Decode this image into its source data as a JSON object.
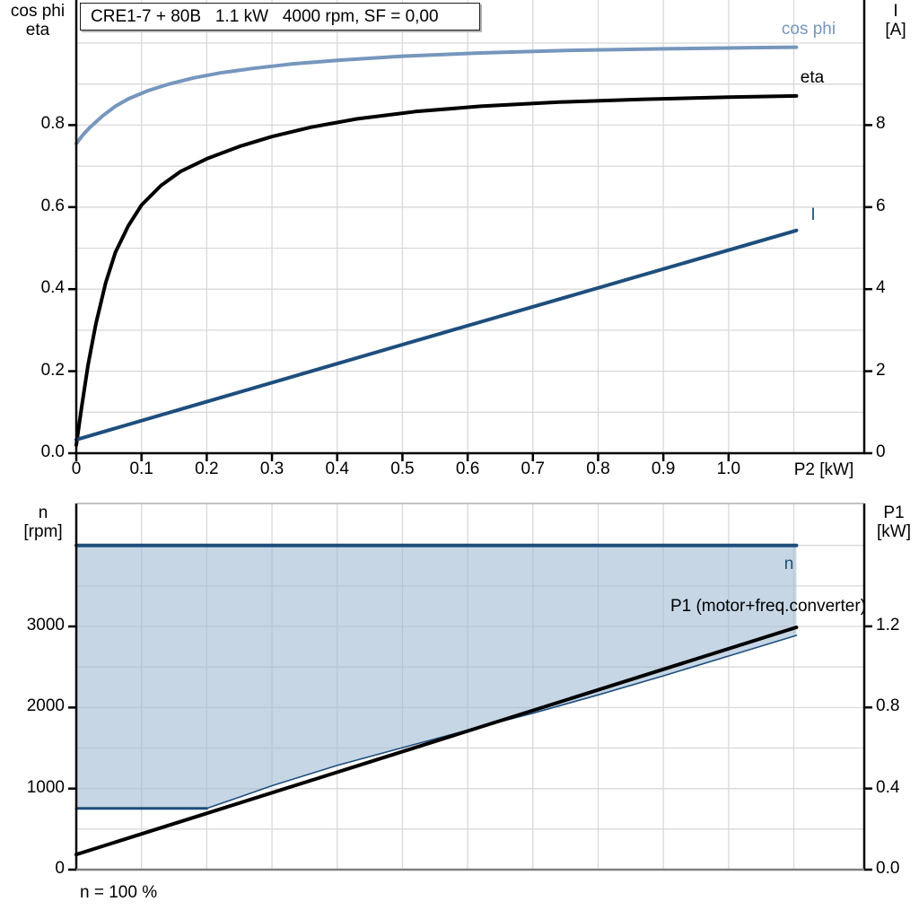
{
  "title": "CRE1-7 + 80B   1.1 kW   4000 rpm, SF = 0,00",
  "footnote": "n = 100 %",
  "colors": {
    "light_blue": "#7696bd",
    "dark_blue": "#1e4e7d",
    "black": "#000000",
    "grid": "#d9d9d9",
    "band_fill": "rgba(157,184,211,0.58)",
    "axis": "#000000",
    "axis_gray": "#808080"
  },
  "chart_data": [
    {
      "type": "line",
      "title": "CRE1-7 + 80B   1.1 kW   4000 rpm, SF = 0,00",
      "x_axis": {
        "label": "P2 [kW]",
        "range": [
          0,
          1.208
        ],
        "grid_step": 0.1,
        "ticks": [
          {
            "v": 0,
            "label": "0"
          },
          {
            "v": 0.1,
            "label": "0.1"
          },
          {
            "v": 0.2,
            "label": "0.2"
          },
          {
            "v": 0.3,
            "label": "0.3"
          },
          {
            "v": 0.4,
            "label": "0.4"
          },
          {
            "v": 0.5,
            "label": "0.5"
          },
          {
            "v": 0.6,
            "label": "0.6"
          },
          {
            "v": 0.7,
            "label": "0.7"
          },
          {
            "v": 0.8,
            "label": "0.8"
          },
          {
            "v": 0.9,
            "label": "0.9"
          },
          {
            "v": 1.0,
            "label": "1.0"
          }
        ]
      },
      "left_axis": {
        "header": [
          "cos phi",
          "eta"
        ],
        "range": [
          0,
          1.105
        ],
        "grid_step": 0.1,
        "ticks": [
          {
            "v": 0,
            "label": "0.0"
          },
          {
            "v": 0.2,
            "label": "0.2"
          },
          {
            "v": 0.4,
            "label": "0.4"
          },
          {
            "v": 0.6,
            "label": "0.6"
          },
          {
            "v": 0.8,
            "label": "0.8"
          }
        ]
      },
      "right_axis": {
        "header": [
          "I",
          "[A]"
        ],
        "range": [
          0,
          11.05
        ],
        "grid_step": 1,
        "ticks": [
          {
            "v": 0,
            "label": "0"
          },
          {
            "v": 2,
            "label": "2"
          },
          {
            "v": 4,
            "label": "4"
          },
          {
            "v": 6,
            "label": "6"
          },
          {
            "v": 8,
            "label": "8"
          }
        ]
      },
      "series": [
        {
          "name": "cos phi",
          "label": "cos phi",
          "axis": "left",
          "color": "light_blue",
          "width": 4,
          "points": [
            [
              0,
              0.755
            ],
            [
              0.01,
              0.776
            ],
            [
              0.02,
              0.793
            ],
            [
              0.04,
              0.822
            ],
            [
              0.06,
              0.846
            ],
            [
              0.08,
              0.864
            ],
            [
              0.11,
              0.884
            ],
            [
              0.14,
              0.899
            ],
            [
              0.18,
              0.915
            ],
            [
              0.22,
              0.927
            ],
            [
              0.27,
              0.938
            ],
            [
              0.33,
              0.949
            ],
            [
              0.4,
              0.958
            ],
            [
              0.5,
              0.968
            ],
            [
              0.62,
              0.976
            ],
            [
              0.75,
              0.982
            ],
            [
              0.9,
              0.986
            ],
            [
              1.05,
              0.989
            ],
            [
              1.104,
              0.99
            ]
          ]
        },
        {
          "name": "eta",
          "label": "eta",
          "axis": "left",
          "color": "black",
          "width": 4,
          "points": [
            [
              0,
              0.02
            ],
            [
              0.008,
              0.11
            ],
            [
              0.018,
              0.215
            ],
            [
              0.03,
              0.315
            ],
            [
              0.045,
              0.415
            ],
            [
              0.06,
              0.49
            ],
            [
              0.08,
              0.555
            ],
            [
              0.1,
              0.605
            ],
            [
              0.13,
              0.653
            ],
            [
              0.16,
              0.687
            ],
            [
              0.2,
              0.718
            ],
            [
              0.25,
              0.748
            ],
            [
              0.3,
              0.772
            ],
            [
              0.36,
              0.795
            ],
            [
              0.43,
              0.815
            ],
            [
              0.52,
              0.833
            ],
            [
              0.62,
              0.846
            ],
            [
              0.74,
              0.856
            ],
            [
              0.87,
              0.863
            ],
            [
              1.0,
              0.868
            ],
            [
              1.104,
              0.871
            ]
          ]
        },
        {
          "name": "I",
          "label": "I",
          "axis": "right",
          "color": "dark_blue",
          "width": 4,
          "points": [
            [
              0,
              0.33
            ],
            [
              0.55,
              2.88
            ],
            [
              1.104,
              5.43
            ]
          ]
        }
      ]
    },
    {
      "type": "line",
      "x_axis": {
        "label": "",
        "range": [
          0,
          1.208
        ],
        "grid_step": 0.1,
        "ticks": []
      },
      "left_axis": {
        "header": [
          "n",
          "[rpm]"
        ],
        "range": [
          0,
          4517
        ],
        "grid_step": 500,
        "ticks": [
          {
            "v": 0,
            "label": "0"
          },
          {
            "v": 1000,
            "label": "1000"
          },
          {
            "v": 2000,
            "label": "2000"
          },
          {
            "v": 3000,
            "label": "3000"
          }
        ]
      },
      "right_axis": {
        "header": [
          "P1",
          "[kW]"
        ],
        "range": [
          0,
          1.806
        ],
        "grid_step": 0.2,
        "ticks": [
          {
            "v": 0,
            "label": "0.0"
          },
          {
            "v": 0.4,
            "label": "0.4"
          },
          {
            "v": 0.8,
            "label": "0.8"
          },
          {
            "v": 1.2,
            "label": "1.2"
          }
        ]
      },
      "band": {
        "name": "speed-range",
        "fill": "band_fill",
        "upper": [
          [
            0,
            4000
          ],
          [
            1.104,
            4000
          ]
        ],
        "lower": [
          [
            0,
            755
          ],
          [
            0.2,
            755
          ],
          [
            0.25,
            895
          ],
          [
            0.3,
            1035
          ],
          [
            0.4,
            1285
          ],
          [
            0.5,
            1505
          ],
          [
            0.6,
            1720
          ],
          [
            0.7,
            1930
          ],
          [
            0.8,
            2155
          ],
          [
            0.9,
            2390
          ],
          [
            1.0,
            2635
          ],
          [
            1.104,
            2890
          ]
        ]
      },
      "series": [
        {
          "name": "n",
          "label": "n",
          "axis": "left",
          "color": "dark_blue",
          "width": 4,
          "points": [
            [
              0,
              4000
            ],
            [
              1.104,
              4000
            ]
          ]
        },
        {
          "name": "n-min-flat",
          "label": "",
          "axis": "left",
          "color": "dark_blue",
          "width": 3,
          "points": [
            [
              0,
              755
            ],
            [
              0.2,
              755
            ]
          ]
        },
        {
          "name": "n-min",
          "label": "",
          "axis": "left",
          "color": "dark_blue",
          "width": 1.6,
          "points": [
            [
              0.2,
              755
            ],
            [
              0.25,
              895
            ],
            [
              0.3,
              1035
            ],
            [
              0.4,
              1285
            ],
            [
              0.5,
              1505
            ],
            [
              0.6,
              1720
            ],
            [
              0.7,
              1930
            ],
            [
              0.8,
              2155
            ],
            [
              0.9,
              2390
            ],
            [
              1.0,
              2635
            ],
            [
              1.104,
              2890
            ]
          ]
        },
        {
          "name": "P1",
          "label": "P1 (motor+freq.converter)",
          "axis": "right",
          "color": "black",
          "width": 4,
          "points": [
            [
              0,
              0.075
            ],
            [
              1.104,
              1.195
            ]
          ]
        }
      ]
    }
  ]
}
